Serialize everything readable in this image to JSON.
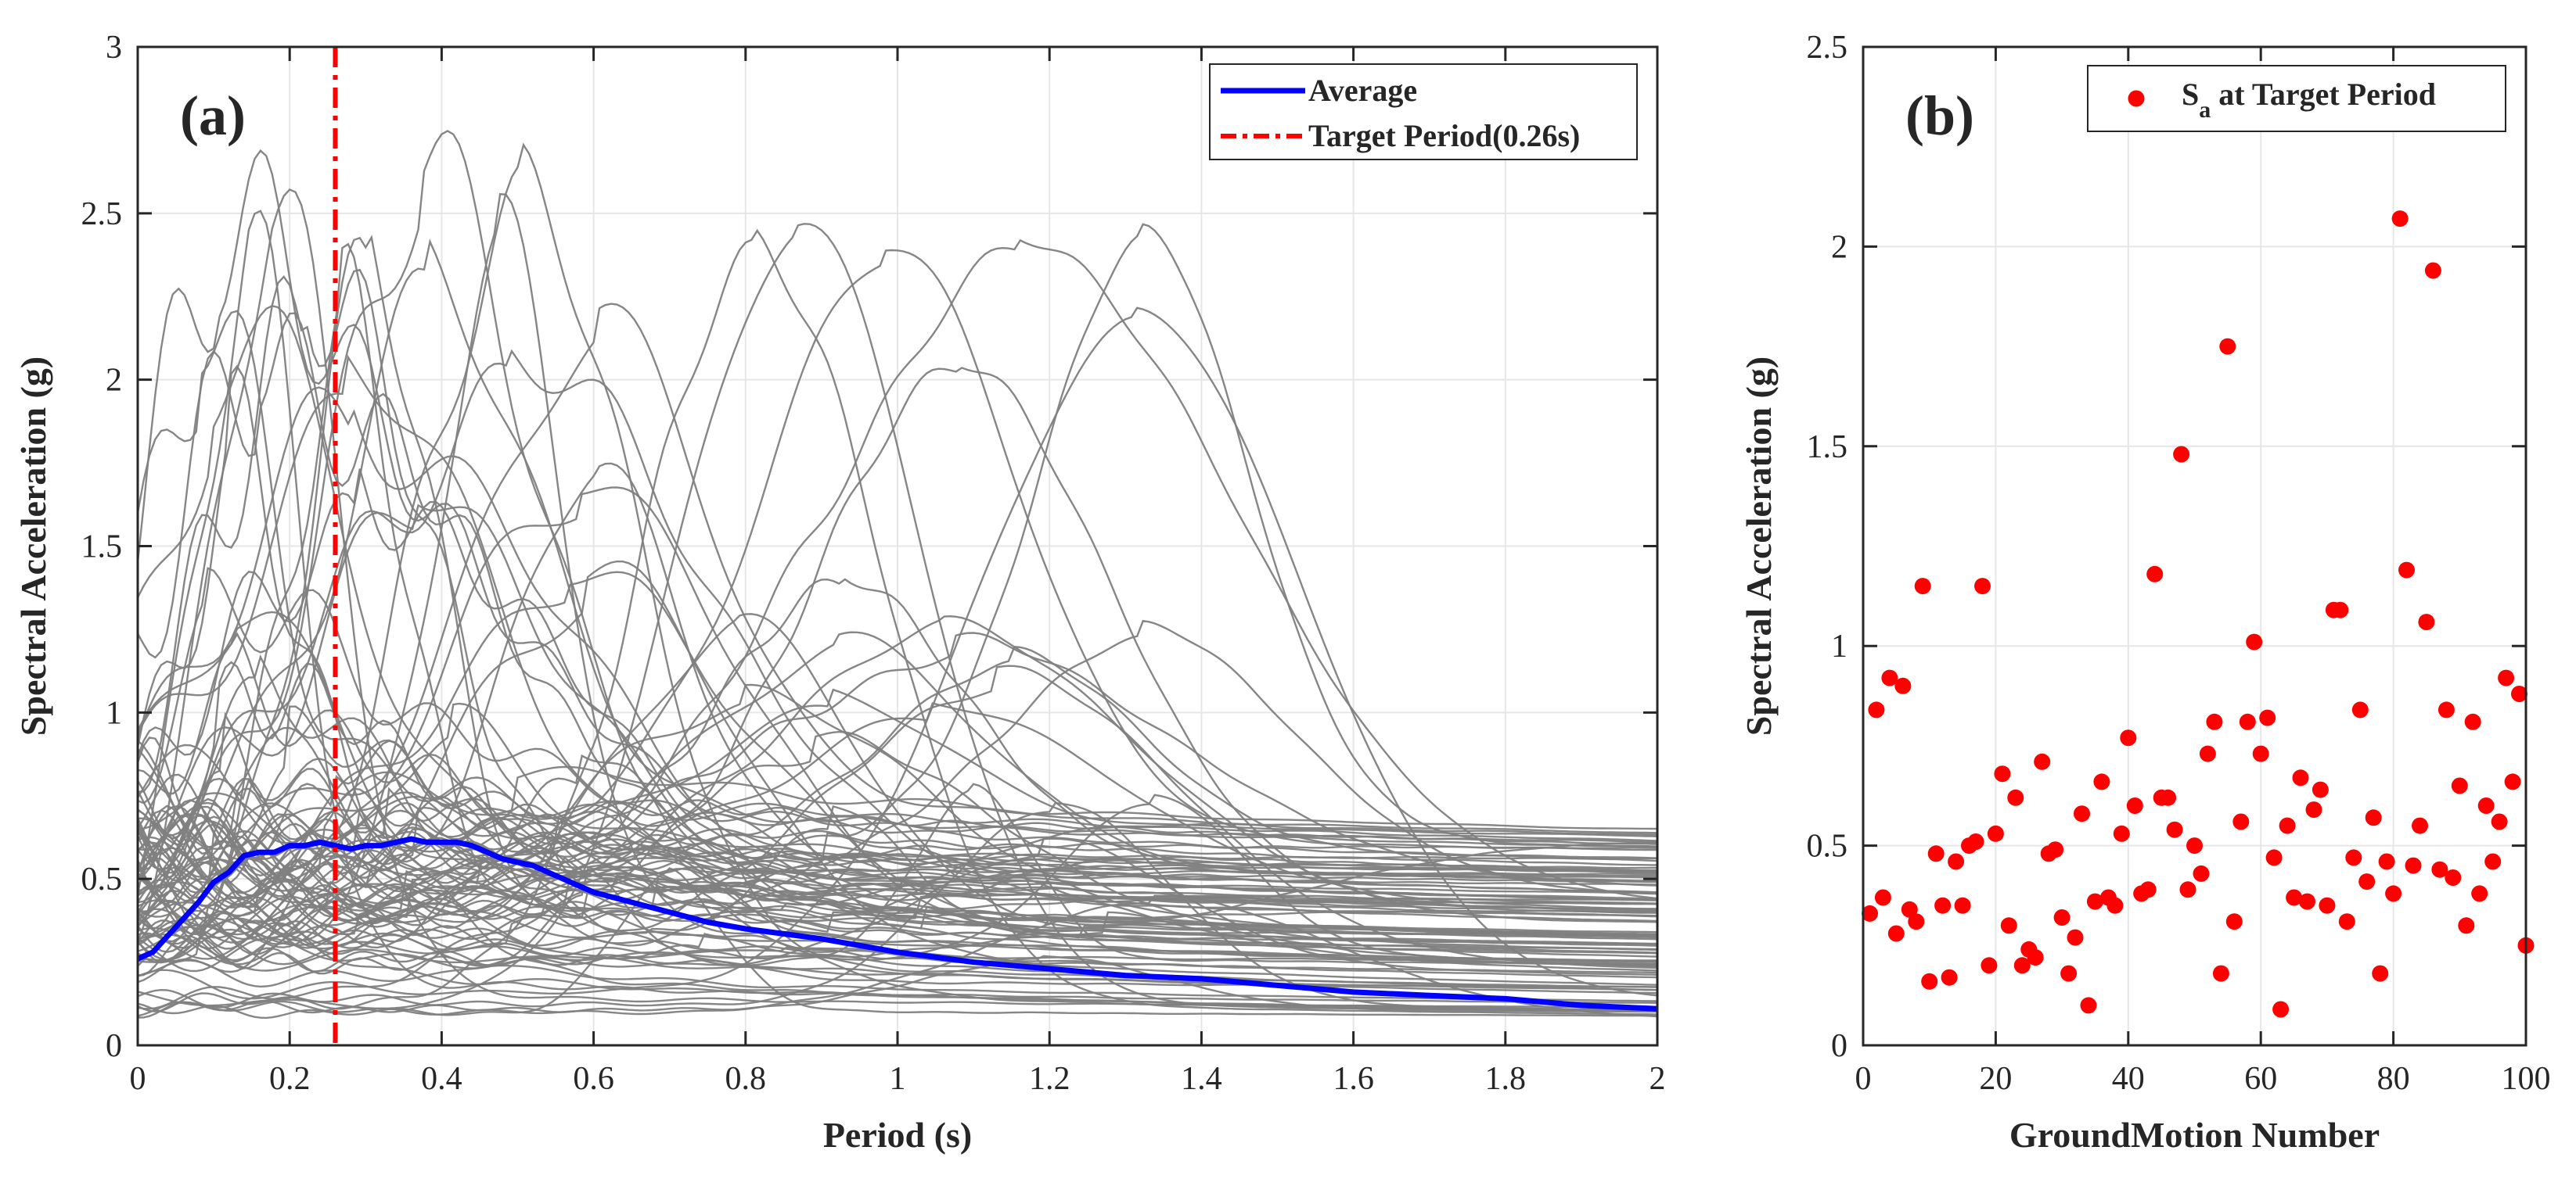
{
  "chart_data": [
    {
      "type": "line",
      "panel_label": "(a)",
      "xlabel": "Period (s)",
      "ylabel": "Spectral Acceleration (g)",
      "xlim": [
        0,
        2
      ],
      "ylim": [
        0,
        3
      ],
      "xticks": [
        "0",
        "0.2",
        "0.4",
        "0.6",
        "0.8",
        "1",
        "1.2",
        "1.4",
        "1.6",
        "1.8",
        "2"
      ],
      "yticks": [
        "0",
        "0.5",
        "1",
        "1.5",
        "2",
        "2.5",
        "3"
      ],
      "grid": true,
      "legend_position": "top-right",
      "legend": [
        "Average",
        "Target Period(0.26s)"
      ],
      "colors": {
        "records": "#808080",
        "average": "#0000ff",
        "target": "#ff0000"
      },
      "target_period": 0.26,
      "average": {
        "x": [
          0,
          0.02,
          0.04,
          0.06,
          0.08,
          0.1,
          0.12,
          0.14,
          0.16,
          0.18,
          0.2,
          0.22,
          0.24,
          0.26,
          0.28,
          0.3,
          0.32,
          0.34,
          0.36,
          0.38,
          0.4,
          0.42,
          0.44,
          0.46,
          0.48,
          0.5,
          0.52,
          0.55,
          0.6,
          0.65,
          0.7,
          0.75,
          0.8,
          0.9,
          1.0,
          1.1,
          1.2,
          1.3,
          1.4,
          1.5,
          1.6,
          1.7,
          1.8,
          1.9,
          2.0
        ],
        "y": [
          0.26,
          0.28,
          0.33,
          0.38,
          0.43,
          0.49,
          0.52,
          0.57,
          0.58,
          0.58,
          0.6,
          0.6,
          0.61,
          0.6,
          0.59,
          0.6,
          0.6,
          0.61,
          0.62,
          0.61,
          0.61,
          0.61,
          0.6,
          0.58,
          0.56,
          0.55,
          0.54,
          0.51,
          0.46,
          0.43,
          0.4,
          0.37,
          0.35,
          0.32,
          0.28,
          0.25,
          0.23,
          0.21,
          0.2,
          0.18,
          0.16,
          0.15,
          0.14,
          0.12,
          0.11
        ]
      },
      "records_shown": 100
    },
    {
      "type": "scatter",
      "panel_label": "(b)",
      "xlabel": "GroundMotion Number",
      "ylabel": "Spectral Acceleration (g)",
      "xlim": [
        0,
        100
      ],
      "ylim": [
        0,
        2.5
      ],
      "xticks": [
        "0",
        "20",
        "40",
        "60",
        "80",
        "100"
      ],
      "yticks": [
        "0",
        "0.5",
        "1",
        "1.5",
        "2",
        "2.5"
      ],
      "grid": true,
      "legend_position": "top-right",
      "legend": {
        "main": "S",
        "sub": "a",
        "rest": " at Target Period"
      },
      "colors": {
        "points": "#ff0000"
      },
      "series": [
        {
          "x": [
            1,
            2,
            3,
            4,
            5,
            6,
            7,
            8,
            9,
            10,
            11,
            12,
            13,
            14,
            15,
            16,
            17,
            18,
            19,
            20,
            21,
            22,
            23,
            24,
            25,
            26,
            27,
            28,
            29,
            30,
            31,
            32,
            33,
            34,
            35,
            36,
            37,
            38,
            39,
            40,
            41,
            42,
            43,
            44,
            45,
            46,
            47,
            48,
            49,
            50,
            51,
            52,
            53,
            54,
            55,
            56,
            57,
            58,
            59,
            60,
            61,
            62,
            63,
            64,
            65,
            66,
            67,
            68,
            69,
            70,
            71,
            72,
            73,
            74,
            75,
            76,
            77,
            78,
            79,
            80,
            81,
            82,
            83,
            84,
            85,
            86,
            87,
            88,
            89,
            90,
            91,
            92,
            93,
            94,
            95,
            96,
            97,
            98,
            99,
            100
          ],
          "y": [
            0.33,
            0.84,
            0.37,
            0.92,
            0.28,
            0.9,
            0.34,
            0.31,
            1.15,
            0.16,
            0.48,
            0.35,
            0.17,
            0.46,
            0.35,
            0.5,
            0.51,
            1.15,
            0.2,
            0.53,
            0.68,
            0.3,
            0.62,
            0.2,
            0.24,
            0.22,
            0.71,
            0.48,
            0.49,
            0.32,
            0.18,
            0.27,
            0.58,
            0.1,
            0.36,
            0.66,
            0.37,
            0.35,
            0.53,
            0.77,
            0.6,
            0.38,
            0.39,
            1.18,
            0.62,
            0.62,
            0.54,
            1.48,
            0.39,
            0.5,
            0.43,
            0.73,
            0.81,
            0.18,
            1.75,
            0.31,
            0.56,
            0.81,
            1.01,
            0.73,
            0.82,
            0.47,
            0.09,
            0.55,
            0.37,
            0.67,
            0.36,
            0.59,
            0.64,
            0.35,
            1.09,
            1.09,
            0.31,
            0.47,
            0.84,
            0.41,
            0.57,
            0.18,
            0.46,
            0.38,
            2.07,
            1.19,
            0.45,
            0.55,
            1.06,
            1.94,
            0.44,
            0.84,
            0.42,
            0.65,
            0.3,
            0.81,
            0.38,
            0.6,
            0.46,
            0.56,
            0.92,
            0.66,
            0.88,
            0.25
          ]
        }
      ]
    }
  ]
}
